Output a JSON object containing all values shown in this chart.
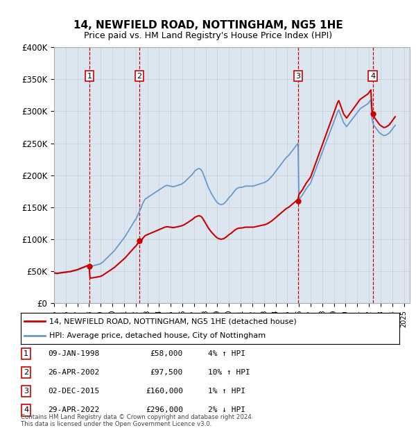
{
  "title": "14, NEWFIELD ROAD, NOTTINGHAM, NG5 1HE",
  "subtitle": "Price paid vs. HM Land Registry's House Price Index (HPI)",
  "legend_line1": "14, NEWFIELD ROAD, NOTTINGHAM, NG5 1HE (detached house)",
  "legend_line2": "HPI: Average price, detached house, City of Nottingham",
  "footer1": "Contains HM Land Registry data © Crown copyright and database right 2024.",
  "footer2": "This data is licensed under the Open Government Licence v3.0.",
  "sale_color": "#cc0000",
  "hpi_color": "#6699cc",
  "vline_color": "#cc0000",
  "plot_bg": "#dce6f1",
  "ylim": [
    0,
    400000
  ],
  "yticks": [
    0,
    50000,
    100000,
    150000,
    200000,
    250000,
    300000,
    350000,
    400000
  ],
  "ytick_labels": [
    "£0",
    "£50K",
    "£100K",
    "£150K",
    "£200K",
    "£250K",
    "£300K",
    "£350K",
    "£400K"
  ],
  "xlim_start": 1995.0,
  "xlim_end": 2025.5,
  "sale_dates": [
    1998.03,
    2002.32,
    2015.92,
    2022.33
  ],
  "sale_prices": [
    58000,
    97500,
    160000,
    296000
  ],
  "sale_labels": [
    "1",
    "2",
    "3",
    "4"
  ],
  "sale_info": [
    {
      "num": "1",
      "date": "09-JAN-1998",
      "price": "£58,000",
      "hpi": "4% ↑ HPI"
    },
    {
      "num": "2",
      "date": "26-APR-2002",
      "price": "£97,500",
      "hpi": "10% ↑ HPI"
    },
    {
      "num": "3",
      "date": "02-DEC-2015",
      "price": "£160,000",
      "hpi": "1% ↑ HPI"
    },
    {
      "num": "4",
      "date": "29-APR-2022",
      "price": "£296,000",
      "hpi": "2% ↓ HPI"
    }
  ],
  "hpi_years_start": 1995.0,
  "hpi_years_step": 0.0833333,
  "hpi_values": [
    47000,
    46500,
    46200,
    46000,
    46200,
    46500,
    46800,
    47000,
    47200,
    47400,
    47600,
    47800,
    48000,
    48200,
    48400,
    48600,
    48800,
    49000,
    49400,
    49800,
    50200,
    50600,
    51000,
    51400,
    51800,
    52400,
    53000,
    53600,
    54200,
    54800,
    55400,
    56000,
    56600,
    57200,
    57800,
    57500,
    57200,
    57500,
    57800,
    58100,
    58400,
    58800,
    59200,
    59600,
    60000,
    60400,
    60800,
    61200,
    62000,
    63000,
    64000,
    65500,
    67000,
    68500,
    70000,
    71500,
    73000,
    74500,
    76000,
    77500,
    79000,
    80500,
    82000,
    84000,
    86000,
    88000,
    90000,
    92000,
    94000,
    96000,
    98000,
    100000,
    102000,
    104000,
    106500,
    109000,
    111500,
    114000,
    116500,
    119000,
    121500,
    124000,
    126500,
    129000,
    131000,
    134000,
    137000,
    141000,
    144000,
    147000,
    151000,
    155000,
    158000,
    161000,
    163000,
    164000,
    165000,
    166000,
    167000,
    168000,
    169000,
    170000,
    171000,
    172000,
    173000,
    174000,
    175000,
    176000,
    177000,
    178000,
    179000,
    180000,
    181000,
    182000,
    183000,
    183500,
    184000,
    184000,
    183500,
    183000,
    183000,
    182500,
    182000,
    182000,
    182500,
    183000,
    183500,
    184000,
    184500,
    185000,
    185500,
    186000,
    187000,
    188000,
    189000,
    190500,
    192000,
    193500,
    195000,
    196500,
    198000,
    199500,
    201000,
    203000,
    205000,
    207000,
    208000,
    209000,
    210000,
    210500,
    210000,
    209000,
    207000,
    204000,
    200000,
    196000,
    192000,
    188000,
    184000,
    180000,
    177000,
    174000,
    171000,
    168500,
    166000,
    163500,
    161000,
    159000,
    157000,
    156000,
    155000,
    154500,
    154000,
    154500,
    155000,
    156000,
    157500,
    159000,
    161000,
    163000,
    165000,
    166500,
    168000,
    170000,
    172000,
    174000,
    176000,
    177500,
    179000,
    180000,
    180500,
    181000,
    181000,
    181000,
    181500,
    182000,
    182500,
    183000,
    183000,
    183000,
    183000,
    183000,
    183000,
    183000,
    183000,
    183000,
    183500,
    184000,
    184500,
    185000,
    185500,
    186000,
    186500,
    187000,
    187500,
    188000,
    188500,
    189000,
    190000,
    191000,
    192000,
    193500,
    195000,
    196500,
    198000,
    200000,
    202000,
    204000,
    206000,
    208000,
    210000,
    212000,
    214000,
    216000,
    218000,
    220000,
    222000,
    224000,
    226000,
    228000,
    229000,
    230500,
    232000,
    234000,
    236000,
    238000,
    240000,
    242000,
    244000,
    246000,
    248000,
    250000,
    162000,
    164000,
    166000,
    168000,
    170000,
    173000,
    175000,
    178000,
    180000,
    182000,
    184000,
    186000,
    188000,
    192000,
    196000,
    200000,
    204000,
    208000,
    212000,
    216000,
    220000,
    224000,
    228000,
    232000,
    236000,
    240000,
    244000,
    248000,
    252000,
    256000,
    260000,
    264000,
    268000,
    272000,
    276000,
    280000,
    284000,
    288000,
    292000,
    296000,
    300000,
    302000,
    298000,
    294000,
    290000,
    286000,
    282000,
    280000,
    278000,
    276000,
    278000,
    280000,
    282000,
    284000,
    286000,
    288000,
    290000,
    292000,
    294000,
    296000,
    298000,
    300000,
    302000,
    304000,
    305000,
    306000,
    307000,
    308000,
    309000,
    310000,
    311000,
    312000,
    314000,
    316000,
    318000,
    290000,
    282000,
    278000,
    276000,
    274000,
    272000,
    270000,
    268000,
    266000,
    265000,
    264000,
    263000,
    262000,
    262000,
    262500,
    263000,
    264000,
    265000,
    266000,
    268000,
    270000,
    272000,
    274000,
    276000,
    278000
  ]
}
